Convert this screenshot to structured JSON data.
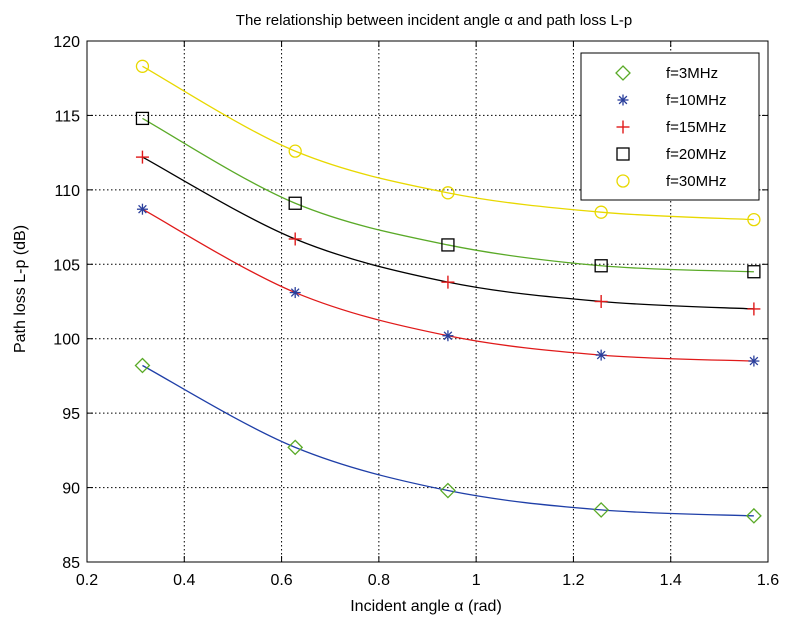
{
  "chart_data": {
    "type": "line",
    "title": "The relationship between incident angle α and path loss L-p",
    "xlabel": "Incident angle α (rad)",
    "ylabel": "Path loss L-p (dB)",
    "xlim": [
      0.2,
      1.6
    ],
    "ylim": [
      85,
      120
    ],
    "xticks": [
      "0.2",
      "0.4",
      "0.6",
      "0.8",
      "1",
      "1.2",
      "1.4",
      "1.6"
    ],
    "yticks": [
      "85",
      "90",
      "95",
      "100",
      "105",
      "110",
      "115",
      "120"
    ],
    "grid": true,
    "legend_position": "top-right",
    "x": [
      0.314,
      0.628,
      0.942,
      1.257,
      1.571
    ],
    "series": [
      {
        "name": "f=3MHz",
        "values": [
          98.2,
          92.7,
          89.8,
          88.5,
          88.1
        ],
        "marker": "diamond",
        "marker_color": "#5aaa28",
        "line_color": "#1f3fa8"
      },
      {
        "name": "f=10MHz",
        "values": [
          108.7,
          103.1,
          100.2,
          98.9,
          98.5
        ],
        "marker": "asterisk",
        "marker_color": "#2a3f9c",
        "line_color": "#e01a1a"
      },
      {
        "name": "f=15MHz",
        "values": [
          112.2,
          106.7,
          103.8,
          102.5,
          102.0
        ],
        "marker": "plus",
        "marker_color": "#e01a1a",
        "line_color": "#000000"
      },
      {
        "name": "f=20MHz",
        "values": [
          114.8,
          109.1,
          106.3,
          104.9,
          104.5
        ],
        "marker": "square",
        "marker_color": "#000000",
        "line_color": "#5aaa28"
      },
      {
        "name": "f=30MHz",
        "values": [
          118.3,
          112.6,
          109.8,
          108.5,
          108.0
        ],
        "marker": "circle",
        "marker_color": "#e8d800",
        "line_color": "#e8d800"
      }
    ]
  }
}
